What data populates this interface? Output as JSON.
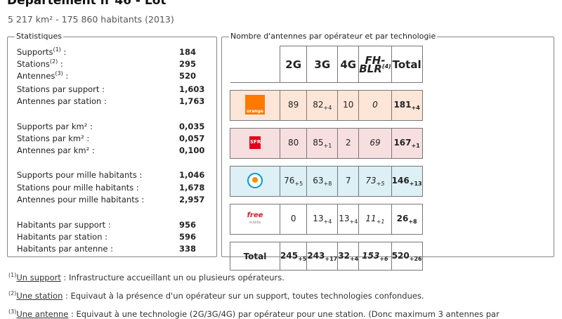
{
  "header": {
    "title": "Département n°46 - Lot",
    "subtitle": "5 217 km² - 175 860 habitants (2013)"
  },
  "stats": {
    "legend": "Statistiques",
    "rows": [
      {
        "label": "Supports",
        "sup": "(1)",
        "suffix": " :",
        "value": "184"
      },
      {
        "label": "Stations",
        "sup": "(2)",
        "suffix": " :",
        "value": "295"
      },
      {
        "label": "Antennes",
        "sup": "(3)",
        "suffix": " :",
        "value": "520"
      },
      {
        "label": "Stations par support :",
        "value": "1,603"
      },
      {
        "label": "Antennes par station :",
        "value": "1,763"
      },
      {
        "label": "Supports par km² :",
        "value": "0,035"
      },
      {
        "label": "Stations par km² :",
        "value": "0,057"
      },
      {
        "label": "Antennes par km² :",
        "value": "0,100"
      },
      {
        "label": "Supports pour mille habitants :",
        "value": "1,046"
      },
      {
        "label": "Stations pour mille habitants :",
        "value": "1,678"
      },
      {
        "label": "Antennes pour mille habitants :",
        "value": "2,957"
      },
      {
        "label": "Habitants par support :",
        "value": "956"
      },
      {
        "label": "Habitants par station :",
        "value": "596"
      },
      {
        "label": "Habitants par antenne :",
        "value": "338"
      }
    ]
  },
  "antennas": {
    "legend": "Nombre d'antennes par opérateur et par technologie",
    "headers": {
      "g2": "2G",
      "g3": "3G",
      "g4": "4G",
      "fh": "FH-",
      "fh2": "BLR",
      "fh_sup": "(4)",
      "total": "Total"
    },
    "operators": [
      {
        "logo_text": "orange",
        "g2": "89",
        "g2d": "",
        "g3": "82",
        "g3d": "+4",
        "g4": "10",
        "g4d": "",
        "fh": "0",
        "fhd": "",
        "total": "181",
        "totald": "+4"
      },
      {
        "logo_text": "SFR",
        "g2": "80",
        "g2d": "",
        "g3": "85",
        "g3d": "+1",
        "g4": "2",
        "g4d": "",
        "fh": "69",
        "fhd": "",
        "total": "167",
        "totald": "+1"
      },
      {
        "logo_text": "",
        "g2": "76",
        "g2d": "+5",
        "g3": "63",
        "g3d": "+8",
        "g4": "7",
        "g4d": "",
        "fh": "73",
        "fhd": "+5",
        "total": "146",
        "totald": "+13"
      },
      {
        "logo_text": "free",
        "logo_sub": "mobile",
        "g2": "0",
        "g2d": "",
        "g3": "13",
        "g3d": "+4",
        "g4": "13",
        "g4d": "+4",
        "fh": "11",
        "fhd": "+1",
        "total": "26",
        "totald": "+8"
      }
    ],
    "totals": {
      "label": "Total",
      "g2": "245",
      "g2d": "+5",
      "g3": "243",
      "g3d": "+17",
      "g4": "32",
      "g4d": "+4",
      "fh": "153",
      "fhd": "+6",
      "total": "520",
      "totald": "+26"
    }
  },
  "footnotes": [
    {
      "num": "(1)",
      "term": "Un support",
      "text": " : Infrastructure accueillant un ou plusieurs opérateurs."
    },
    {
      "num": "(2)",
      "term": "Une station",
      "text": " : Equivaut à la présence d'un opérateur sur un support, toutes technologies confondues."
    },
    {
      "num": "(3)",
      "term": "Une antenne",
      "text": " : Equivaut à une technologie (2G/3G/4G) par opérateur pour une station. (Donc maximum 3 antennes par"
    }
  ]
}
